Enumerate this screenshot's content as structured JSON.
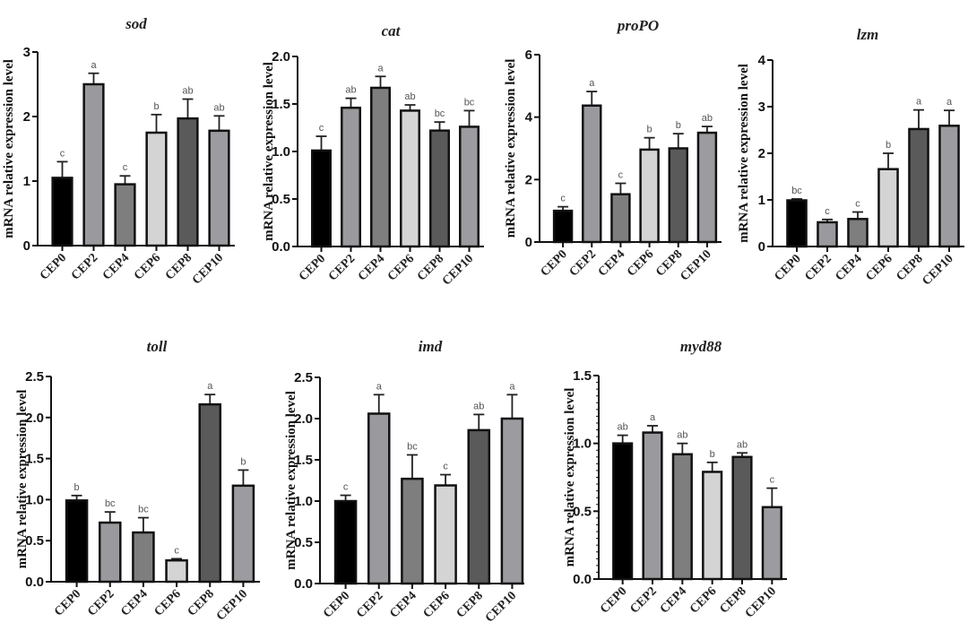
{
  "chart_data": [
    {
      "type": "bar",
      "title": "sod",
      "ylabel": "mRNA relative  expression level",
      "xlabel": "",
      "categories": [
        "CEP0",
        "CEP2",
        "CEP4",
        "CEP6",
        "CEP8",
        "CEP10"
      ],
      "values": [
        1.05,
        2.5,
        0.95,
        1.75,
        1.97,
        1.78
      ],
      "errors": [
        0.25,
        0.17,
        0.13,
        0.28,
        0.3,
        0.23
      ],
      "significance": [
        "c",
        "a",
        "c",
        "b",
        "ab",
        "ab"
      ],
      "ylim": [
        0,
        3
      ],
      "yticks": [
        "0",
        "1",
        "2",
        "3"
      ],
      "ytick_values": [
        0,
        1,
        2,
        3
      ],
      "minor_ticks": false
    },
    {
      "type": "bar",
      "title": "cat",
      "ylabel": "mRNA relative  expression level",
      "xlabel": "",
      "categories": [
        "CEP0",
        "CEP2",
        "CEP4",
        "CEP6",
        "CEP8",
        "CEP10"
      ],
      "values": [
        1.01,
        1.46,
        1.67,
        1.43,
        1.22,
        1.26
      ],
      "errors": [
        0.15,
        0.1,
        0.12,
        0.06,
        0.09,
        0.17
      ],
      "significance": [
        "c",
        "ab",
        "a",
        "ab",
        "bc",
        "bc"
      ],
      "ylim": [
        0,
        2
      ],
      "yticks": [
        "0.0",
        "0.5",
        "1.0",
        "1.5",
        "2.0"
      ],
      "ytick_values": [
        0,
        0.5,
        1,
        1.5,
        2
      ],
      "minor_ticks": false
    },
    {
      "type": "bar",
      "title": "proPO",
      "ylabel": "mRNA relative  expression level",
      "xlabel": "",
      "categories": [
        "CEP0",
        "CEP2",
        "CEP4",
        "CEP6",
        "CEP8",
        "CEP10"
      ],
      "values": [
        1.0,
        4.37,
        1.53,
        2.96,
        3.0,
        3.5
      ],
      "errors": [
        0.13,
        0.45,
        0.35,
        0.38,
        0.47,
        0.2
      ],
      "significance": [
        "c",
        "a",
        "c",
        "b",
        "b",
        "ab"
      ],
      "ylim": [
        0,
        6
      ],
      "yticks": [
        "0",
        "2",
        "4",
        "6"
      ],
      "ytick_values": [
        0,
        2,
        4,
        6
      ],
      "minor_ticks": false
    },
    {
      "type": "bar",
      "title": "lzm",
      "ylabel": "mRNA relative  expression level",
      "xlabel": "",
      "categories": [
        "CEP0",
        "CEP2",
        "CEP4",
        "CEP6",
        "CEP8",
        "CEP10"
      ],
      "values": [
        0.99,
        0.52,
        0.59,
        1.66,
        2.52,
        2.59
      ],
      "errors": [
        0.03,
        0.06,
        0.15,
        0.34,
        0.41,
        0.33
      ],
      "significance": [
        "bc",
        "c",
        "c",
        "b",
        "a",
        "a"
      ],
      "ylim": [
        0,
        4
      ],
      "yticks": [
        "0",
        "1",
        "2",
        "3",
        "4"
      ],
      "ytick_values": [
        0,
        1,
        2,
        3,
        4
      ],
      "minor_ticks": false
    },
    {
      "type": "bar",
      "title": "toll",
      "ylabel": "mRNA relative  expression level",
      "xlabel": "",
      "categories": [
        "CEP0",
        "CEP2",
        "CEP4",
        "CEP6",
        "CEP8",
        "CEP10"
      ],
      "values": [
        0.99,
        0.72,
        0.6,
        0.26,
        2.16,
        1.17
      ],
      "errors": [
        0.06,
        0.13,
        0.18,
        0.02,
        0.12,
        0.19
      ],
      "significance": [
        "b",
        "bc",
        "bc",
        "c",
        "a",
        "b"
      ],
      "ylim": [
        0,
        2.5
      ],
      "yticks": [
        "0.0",
        "0.5",
        "1.0",
        "1.5",
        "2.0",
        "2.5"
      ],
      "ytick_values": [
        0,
        0.5,
        1,
        1.5,
        2,
        2.5
      ],
      "minor_ticks": false
    },
    {
      "type": "bar",
      "title": "imd",
      "ylabel": "mRNA relative  expression level",
      "xlabel": "",
      "categories": [
        "CEP0",
        "CEP2",
        "CEP4",
        "CEP6",
        "CEP8",
        "CEP10"
      ],
      "values": [
        1.0,
        2.06,
        1.27,
        1.19,
        1.86,
        2.0
      ],
      "errors": [
        0.07,
        0.23,
        0.29,
        0.13,
        0.19,
        0.29
      ],
      "significance": [
        "c",
        "a",
        "bc",
        "c",
        "ab",
        "a"
      ],
      "ylim": [
        0,
        2.5
      ],
      "yticks": [
        "0.0",
        "0.5",
        "1.0",
        "1.5",
        "2.0",
        "2.5"
      ],
      "ytick_values": [
        0,
        0.5,
        1,
        1.5,
        2,
        2.5
      ],
      "minor_ticks": false
    },
    {
      "type": "bar",
      "title": "myd88",
      "ylabel": "mRNA relative  expression level",
      "xlabel": "",
      "categories": [
        "CEP0",
        "CEP2",
        "CEP4",
        "CEP6",
        "CEP8",
        "CEP10"
      ],
      "values": [
        1.0,
        1.08,
        0.92,
        0.79,
        0.9,
        0.53
      ],
      "errors": [
        0.06,
        0.05,
        0.08,
        0.07,
        0.03,
        0.14
      ],
      "significance": [
        "ab",
        "a",
        "ab",
        "b",
        "ab",
        "c"
      ],
      "ylim": [
        0,
        1.5
      ],
      "yticks": [
        "0.0",
        "0.5",
        "1.0",
        "1.5"
      ],
      "ytick_values": [
        0,
        0.5,
        1,
        1.5
      ],
      "minor_ticks": true
    }
  ],
  "bar_colors": [
    "#000000",
    "#9a9a9e",
    "#7e7e7e",
    "#d4d4d4",
    "#5a5a5a",
    "#9c9ca0"
  ]
}
